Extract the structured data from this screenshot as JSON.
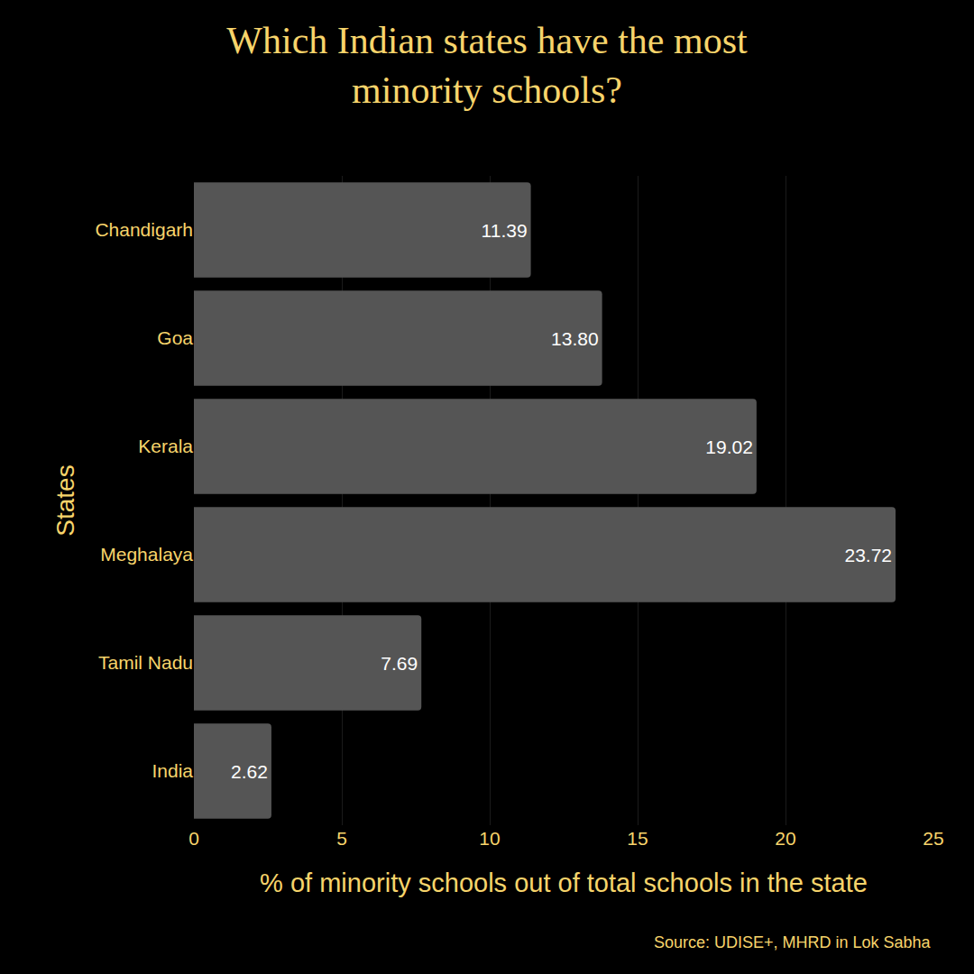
{
  "chart_data": {
    "type": "bar",
    "orientation": "horizontal",
    "title": "Which Indian states have the most minority schools?",
    "x_label": "% of minority schools out of total schools in the state",
    "y_label": "States",
    "source": "Source: UDISE+, MHRD in Lok Sabha",
    "categories": [
      "Chandigarh",
      "Goa",
      "Kerala",
      "Meghalaya",
      "Tamil Nadu",
      "India"
    ],
    "values": [
      11.39,
      13.8,
      19.02,
      23.72,
      7.69,
      2.62
    ],
    "value_labels": [
      "11.39",
      "13.80",
      "19.02",
      "23.72",
      "7.69",
      "2.62"
    ],
    "color": "#555555",
    "xlim": [
      0,
      25
    ],
    "xticks": [
      0,
      5,
      10,
      15,
      20,
      25
    ],
    "grid": true,
    "data_labels": true
  }
}
